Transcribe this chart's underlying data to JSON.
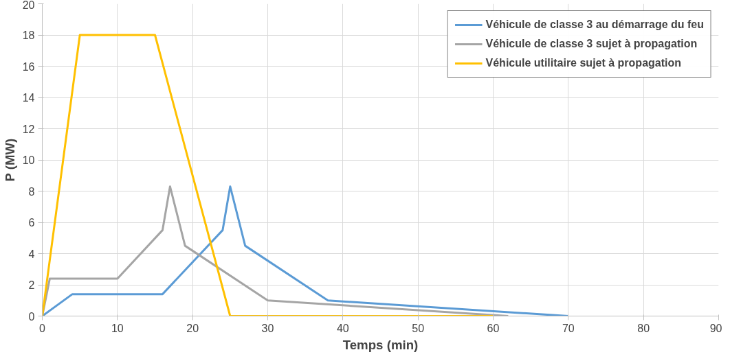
{
  "chart_data": {
    "type": "line",
    "xlabel": "Temps (min)",
    "ylabel": "P (MW)",
    "xlim": [
      0,
      90
    ],
    "ylim": [
      0,
      20
    ],
    "xticks": [
      0,
      10,
      20,
      30,
      40,
      50,
      60,
      70,
      80,
      90
    ],
    "yticks": [
      0,
      2,
      4,
      6,
      8,
      10,
      12,
      14,
      16,
      18,
      20
    ],
    "grid": true,
    "legend": "top right",
    "marker": "none",
    "line_style": "solid",
    "series": [
      {
        "name": "Véhicule de classe 3 au démarrage du feu",
        "color": "#5b9bd5",
        "x": [
          0,
          4,
          16,
          24,
          25,
          27,
          38,
          70
        ],
        "values": [
          0,
          1.4,
          1.4,
          5.5,
          8.3,
          4.5,
          1,
          0
        ]
      },
      {
        "name": "Véhicule de classe 3 sujet à propagation",
        "color": "#a5a5a5",
        "x": [
          0,
          1,
          10,
          16,
          17,
          19,
          30,
          62
        ],
        "values": [
          0,
          2.4,
          2.4,
          5.5,
          8.3,
          4.5,
          1,
          0
        ]
      },
      {
        "name": "Véhicule utilitaire sujet à propagation",
        "color": "#ffc000",
        "x": [
          0,
          5,
          15,
          25,
          60
        ],
        "values": [
          0,
          18,
          18,
          0,
          0
        ]
      }
    ]
  }
}
